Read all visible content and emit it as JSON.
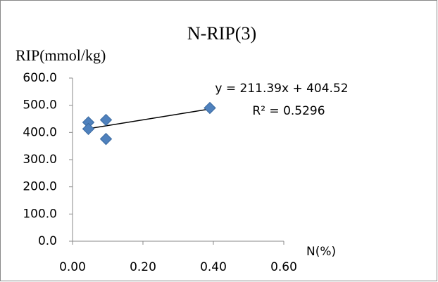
{
  "chart_data": {
    "type": "scatter",
    "title": "N-RIP(3)",
    "y_label": "RIP(mmol/kg)",
    "x_label": "N(%)",
    "x": [
      0.045,
      0.045,
      0.095,
      0.095,
      0.39
    ],
    "values": [
      437,
      413,
      446,
      376,
      490
    ],
    "color": "#4f81bd",
    "xlim": [
      0,
      0.6
    ],
    "xticks": [
      {
        "value": 0,
        "label": "0.00"
      },
      {
        "value": 0.2,
        "label": "0.20"
      },
      {
        "value": 0.4,
        "label": "0.40"
      },
      {
        "value": 0.6,
        "label": "0.60"
      }
    ],
    "ylim": [
      0,
      600
    ],
    "yticks": [
      {
        "value": 0,
        "label": "0.0"
      },
      {
        "value": 100,
        "label": "100.0"
      },
      {
        "value": 200,
        "label": "200.0"
      },
      {
        "value": 300,
        "label": "300.0"
      },
      {
        "value": 400,
        "label": "400.0"
      },
      {
        "value": 500,
        "label": "500.0"
      },
      {
        "value": 600,
        "label": "600.0"
      }
    ],
    "grid": false,
    "trendline": {
      "equation": "y = 211.39x + 404.52",
      "r_squared": "R² = 0.5296"
    }
  }
}
